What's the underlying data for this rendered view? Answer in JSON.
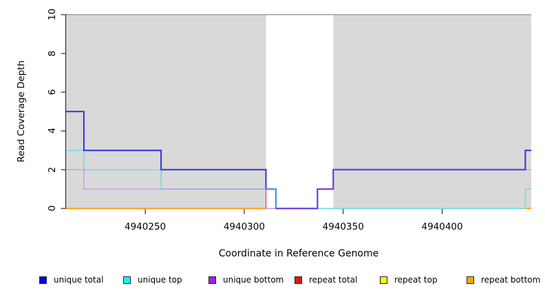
{
  "figure": {
    "background": "#ffffff",
    "band_fill": "#d9d9d9",
    "cap_line_color": "#8f8f8f",
    "axis_color": "#2e2e2e",
    "text_color": "#000000"
  },
  "chart_data": {
    "type": "line",
    "subtype": "step-coverage",
    "title": "",
    "xlabel": "Coordinate in Reference Genome",
    "ylabel": "Read Coverage Depth",
    "xlim": [
      4940210,
      4940445
    ],
    "ylim": [
      0,
      10
    ],
    "xticks": [
      4940250,
      4940300,
      4940350,
      4940400
    ],
    "yticks": [
      0,
      2,
      4,
      6,
      8,
      10
    ],
    "grid": false,
    "legend_position": "bottom",
    "shaded_bands": [
      {
        "from": 4940210,
        "to": 4940311
      },
      {
        "from": 4940345,
        "to": 4940445
      }
    ],
    "cap_line_depth": 10,
    "series": [
      {
        "name": "repeat total",
        "legend_color": "#ee1111",
        "line_color": "#f2a3a3",
        "width": 1.3,
        "segments": [
          [
            [
              4940311,
              0
            ],
            [
              4940316,
              0
            ]
          ]
        ]
      },
      {
        "name": "repeat top",
        "legend_color": "#ffff00",
        "line_color": "#8fca8f",
        "width": 1.5,
        "segments": [
          [
            [
              4940337,
              0
            ],
            [
              4940442,
              0
            ]
          ]
        ]
      },
      {
        "name": "repeat bottom",
        "legend_color": "#ffa500",
        "line_color": "#ff9d1e",
        "width": 2,
        "segments": [
          [
            [
              4940210,
              0
            ],
            [
              4940311,
              0
            ]
          ],
          [
            [
              4940442,
              0
            ],
            [
              4940445,
              0
            ]
          ]
        ]
      },
      {
        "name": "unique top",
        "legend_color": "#00ffff",
        "line_color": "#63dfdf",
        "width": 1.5,
        "segments": [
          [
            [
              4940210,
              3
            ],
            [
              4940219,
              2
            ],
            [
              4940258,
              1
            ],
            [
              4940316,
              0
            ],
            [
              4940442,
              1
            ],
            [
              4940445,
              1
            ]
          ]
        ]
      },
      {
        "name": "unique bottom",
        "legend_color": "#a020f0",
        "line_color": "#c89ae4",
        "width": 1.5,
        "segments": [
          [
            [
              4940210,
              2
            ],
            [
              4940219,
              1
            ],
            [
              4940311,
              0
            ],
            [
              4940337,
              1
            ],
            [
              4940345,
              2
            ],
            [
              4940445,
              2
            ]
          ]
        ]
      },
      {
        "name": "unique total",
        "legend_color": "#0000ee",
        "line_color": "#3231db",
        "width": 2,
        "segments": [
          [
            [
              4940210,
              5
            ],
            [
              4940219,
              3
            ],
            [
              4940258,
              2
            ],
            [
              4940311,
              1
            ],
            [
              4940316,
              0
            ],
            [
              4940337,
              1
            ],
            [
              4940345,
              2
            ],
            [
              4940442,
              3
            ],
            [
              4940445,
              3
            ]
          ]
        ]
      }
    ],
    "overlap_segments": [
      {
        "name": "unique-top-plus-bottom",
        "color": "#a2a7ee",
        "width": 1.5,
        "points": [
          [
            4940258,
            1
          ],
          [
            4940311,
            1
          ]
        ]
      },
      {
        "name": "unique-total-plus-top",
        "color": "#4596e8",
        "width": 1.8,
        "points": [
          [
            4940311,
            1
          ],
          [
            4940316,
            0
          ]
        ]
      },
      {
        "name": "unique-total-plus-bottom",
        "color": "#6e3be4",
        "width": 1.8,
        "points": [
          [
            4940316,
            0
          ],
          [
            4940337,
            1
          ],
          [
            4940345,
            2
          ],
          [
            4940442,
            2
          ]
        ]
      },
      {
        "name": "unique-bottom-drop",
        "color": "#e2569b",
        "width": 1.3,
        "points": [
          [
            4940311,
            1
          ],
          [
            4940311,
            0
          ]
        ]
      }
    ],
    "legend_order": [
      "unique total",
      "unique top",
      "unique bottom",
      "repeat total",
      "repeat top",
      "repeat bottom"
    ]
  }
}
